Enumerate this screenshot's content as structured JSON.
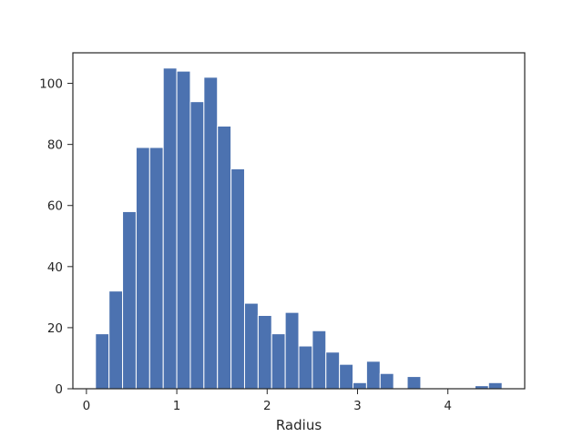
{
  "chart_data": {
    "type": "histogram",
    "bar_color": "#4c72b0",
    "bin_edges": [
      0.1,
      0.25,
      0.4,
      0.55,
      0.7,
      0.85,
      1.0,
      1.15,
      1.3,
      1.45,
      1.6,
      1.75,
      1.9,
      2.05,
      2.2,
      2.35,
      2.5,
      2.65,
      2.8,
      2.95,
      3.1,
      3.25,
      3.4,
      3.55,
      3.7,
      3.85,
      4.0,
      4.15,
      4.3,
      4.45,
      4.6
    ],
    "counts": [
      18,
      32,
      58,
      79,
      79,
      105,
      104,
      94,
      102,
      86,
      72,
      28,
      24,
      18,
      25,
      14,
      19,
      12,
      8,
      2,
      9,
      5,
      0,
      4,
      0,
      0,
      0,
      0,
      1,
      2
    ],
    "xlabel": "Radius",
    "ylabel": "",
    "xlim": [
      -0.15,
      4.85
    ],
    "ylim": [
      0,
      110
    ],
    "xticks": [
      0,
      1,
      2,
      3,
      4
    ],
    "xtick_labels": [
      "0",
      "1",
      "2",
      "3",
      "4"
    ],
    "yticks": [
      0,
      20,
      40,
      60,
      80,
      100
    ],
    "ytick_labels": [
      "0",
      "20",
      "40",
      "60",
      "80",
      "100"
    ],
    "grid": false
  }
}
